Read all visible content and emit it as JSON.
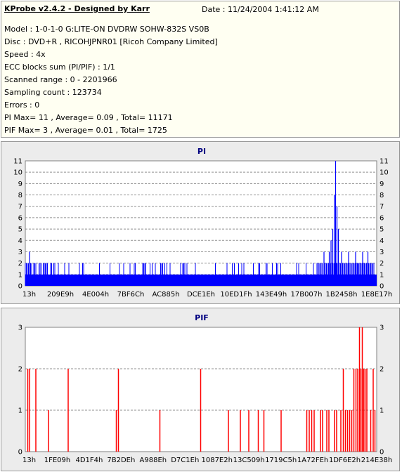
{
  "header": {
    "title": "KProbe v2.4.2 - Designed by Karr",
    "date": "Date : 11/24/2004 1:41:12 AM"
  },
  "info_lines": [
    "Model : 1-0-1-0 G:LITE-ON DVDRW SOHW-832S  VS0B",
    "Disc : DVD+R , RICOHJPNR01 [Ricoh Company Limited]",
    "Speed : 4x",
    "ECC blocks sum (PI/PIF) : 1/1",
    "Scanned range : 0 - 2201966",
    "Sampling count : 123734",
    "Errors : 0",
    "PI Max= 11 , Average= 0.09 , Total= 11171",
    "PIF Max= 3 , Average= 0.01 , Total= 1725"
  ],
  "chart_data": [
    {
      "type": "bar",
      "title": "PI",
      "ylim": [
        0,
        11
      ],
      "yticks": [
        0,
        1,
        2,
        3,
        4,
        5,
        6,
        7,
        8,
        9,
        10,
        11
      ],
      "grid": true,
      "color": "#0000ff",
      "xticklabels": [
        "13h",
        "209E9h",
        "4E004h",
        "7BF6Ch",
        "AC885h",
        "DCE1Eh",
        "10ED1Fh",
        "143E49h",
        "17B007h",
        "1B2458h",
        "1E8E17h"
      ],
      "baseline": 1,
      "segments": [
        {
          "x": [
            0.0,
            0.085
          ],
          "value": 2,
          "density": 0.6
        },
        {
          "x": [
            0.085,
            0.83
          ],
          "value": 2,
          "density": 0.2
        },
        {
          "x": [
            0.83,
            0.87
          ],
          "value": 2,
          "density": 0.8
        },
        {
          "x": [
            0.87,
            0.95
          ],
          "value": 2,
          "density": 1.0
        },
        {
          "x": [
            0.95,
            1.0
          ],
          "value": 2,
          "density": 0.7
        }
      ],
      "spikes": [
        {
          "x": 0.012,
          "value": 3
        },
        {
          "x": 0.85,
          "value": 3
        },
        {
          "x": 0.865,
          "value": 3
        },
        {
          "x": 0.87,
          "value": 4
        },
        {
          "x": 0.875,
          "value": 5
        },
        {
          "x": 0.88,
          "value": 8
        },
        {
          "x": 0.883,
          "value": 11
        },
        {
          "x": 0.887,
          "value": 7
        },
        {
          "x": 0.891,
          "value": 5
        },
        {
          "x": 0.9,
          "value": 3
        },
        {
          "x": 0.92,
          "value": 3
        },
        {
          "x": 0.94,
          "value": 3
        },
        {
          "x": 0.96,
          "value": 3
        },
        {
          "x": 0.975,
          "value": 3
        }
      ]
    },
    {
      "type": "bar",
      "title": "PIF",
      "ylim": [
        0,
        3
      ],
      "yticks": [
        0,
        1,
        2,
        3
      ],
      "grid": true,
      "color": "#ff0000",
      "xticklabels": [
        "13h",
        "1FE09h",
        "4D1F4h",
        "7B2DEh",
        "A988Eh",
        "D7C1Eh",
        "1087E2h",
        "13C509h",
        "1719C5h",
        "1A72FEh",
        "1DF6E2h",
        "214E38h"
      ],
      "bars": [
        {
          "x": 0.007,
          "value": 2
        },
        {
          "x": 0.012,
          "value": 2
        },
        {
          "x": 0.03,
          "value": 2
        },
        {
          "x": 0.066,
          "value": 1
        },
        {
          "x": 0.122,
          "value": 2
        },
        {
          "x": 0.259,
          "value": 1
        },
        {
          "x": 0.265,
          "value": 2
        },
        {
          "x": 0.383,
          "value": 1
        },
        {
          "x": 0.499,
          "value": 2
        },
        {
          "x": 0.578,
          "value": 1
        },
        {
          "x": 0.612,
          "value": 1
        },
        {
          "x": 0.636,
          "value": 1
        },
        {
          "x": 0.663,
          "value": 1
        },
        {
          "x": 0.679,
          "value": 1
        },
        {
          "x": 0.728,
          "value": 1
        },
        {
          "x": 0.801,
          "value": 1
        },
        {
          "x": 0.808,
          "value": 1
        },
        {
          "x": 0.815,
          "value": 1
        },
        {
          "x": 0.822,
          "value": 1
        },
        {
          "x": 0.84,
          "value": 1
        },
        {
          "x": 0.846,
          "value": 1
        },
        {
          "x": 0.858,
          "value": 1
        },
        {
          "x": 0.864,
          "value": 1
        },
        {
          "x": 0.88,
          "value": 1
        },
        {
          "x": 0.886,
          "value": 1
        },
        {
          "x": 0.898,
          "value": 1
        },
        {
          "x": 0.905,
          "value": 2
        },
        {
          "x": 0.911,
          "value": 1
        },
        {
          "x": 0.917,
          "value": 1
        },
        {
          "x": 0.923,
          "value": 1
        },
        {
          "x": 0.929,
          "value": 1
        },
        {
          "x": 0.935,
          "value": 2
        },
        {
          "x": 0.941,
          "value": 2
        },
        {
          "x": 0.946,
          "value": 2
        },
        {
          "x": 0.951,
          "value": 3
        },
        {
          "x": 0.955,
          "value": 2
        },
        {
          "x": 0.959,
          "value": 3
        },
        {
          "x": 0.963,
          "value": 2
        },
        {
          "x": 0.967,
          "value": 2
        },
        {
          "x": 0.972,
          "value": 2
        },
        {
          "x": 0.983,
          "value": 1
        },
        {
          "x": 0.99,
          "value": 2
        },
        {
          "x": 0.995,
          "value": 1
        }
      ]
    }
  ]
}
